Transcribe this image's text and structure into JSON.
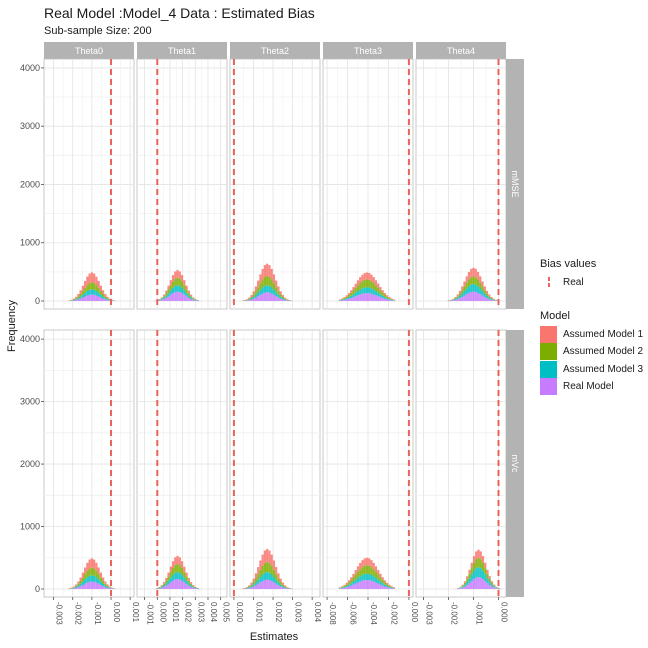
{
  "title": "Real Model :Model_4 Data : Estimated Bias",
  "subtitle": "Sub-sample Size: 200",
  "chart_data": {
    "type": "histogram",
    "xlabel": "Estimates",
    "ylabel": "Frequency",
    "ylim": [
      0,
      4050
    ],
    "yticks": [
      0,
      1000,
      2000,
      3000,
      4000
    ],
    "columns": [
      "Theta0",
      "Theta1",
      "Theta2",
      "Theta3",
      "Theta4"
    ],
    "rows": [
      "mMSE",
      "mVc"
    ],
    "column_xaxes": [
      {
        "xlim": [
          -0.0035,
          0.0012
        ],
        "ticks": [
          -0.003,
          -0.002,
          -0.001,
          0.0,
          0.001
        ],
        "tick_labels": [
          "-0.003",
          "-0.002",
          "-0.001",
          "0.000",
          "0.001"
        ]
      },
      {
        "xlim": [
          -0.0016,
          0.0055
        ],
        "ticks": [
          -0.001,
          0.0,
          0.001,
          0.002,
          0.003,
          0.004,
          0.005
        ],
        "tick_labels": [
          "-0.001",
          "0.000",
          "0.001",
          "0.002",
          "0.003",
          "0.004",
          "0.005"
        ]
      },
      {
        "xlim": [
          -0.0002,
          0.0044
        ],
        "ticks": [
          0.0,
          0.001,
          0.002,
          0.003,
          0.004
        ],
        "tick_labels": [
          "0.000",
          "0.001",
          "0.002",
          "0.003",
          "0.004"
        ]
      },
      {
        "xlim": [
          -0.0084,
          0.0004
        ],
        "ticks": [
          -0.008,
          -0.006,
          -0.004,
          -0.002,
          0.0
        ],
        "tick_labels": [
          "-0.008",
          "-0.006",
          "-0.004",
          "-0.002",
          "0.000"
        ]
      },
      {
        "xlim": [
          -0.0033,
          0.0003
        ],
        "ticks": [
          -0.003,
          -0.002,
          -0.001,
          0.0
        ],
        "tick_labels": [
          "-0.003",
          "-0.002",
          "-0.001",
          "0.000"
        ]
      }
    ],
    "real_bias": [
      0.0,
      0.0,
      0.0,
      0.0,
      0.0
    ],
    "histogram_centers": [
      [
        -0.001,
        -0.001
      ],
      [
        0.0016,
        0.0016
      ],
      [
        0.0017,
        0.0017
      ],
      [
        -0.0041,
        -0.0041
      ],
      [
        -0.001,
        -0.0008
      ]
    ],
    "histogram_sd": [
      [
        0.00042,
        0.00042
      ],
      [
        0.0006,
        0.0006
      ],
      [
        0.00042,
        0.00042
      ],
      [
        0.0011,
        0.0011
      ],
      [
        0.00035,
        0.0003
      ]
    ],
    "series": [
      {
        "name": "Real Model",
        "color": "#c77cff",
        "peaks": [
          [
            110,
            120
          ],
          [
            160,
            160
          ],
          [
            150,
            150
          ],
          [
            135,
            145
          ],
          [
            160,
            190
          ]
        ]
      },
      {
        "name": "Assumed Model 3",
        "color": "#00bfc4",
        "peaks": [
          [
            90,
            100
          ],
          [
            110,
            110
          ],
          [
            120,
            120
          ],
          [
            100,
            100
          ],
          [
            130,
            160
          ]
        ]
      },
      {
        "name": "Assumed Model 2",
        "color": "#7cae00",
        "peaks": [
          [
            120,
            120
          ],
          [
            130,
            130
          ],
          [
            160,
            160
          ],
          [
            135,
            135
          ],
          [
            130,
            150
          ]
        ]
      },
      {
        "name": "Assumed Model 1",
        "color": "#f8766d",
        "peaks": [
          [
            170,
            150
          ],
          [
            130,
            130
          ],
          [
            210,
            210
          ],
          [
            120,
            120
          ],
          [
            150,
            130
          ]
        ]
      }
    ],
    "legend": {
      "bias_title": "Bias values",
      "bias_label": "Real",
      "bias_color": "#e8645a",
      "model_title": "Model",
      "models": [
        {
          "label": "Assumed Model 1",
          "color": "#f8766d"
        },
        {
          "label": "Assumed Model 2",
          "color": "#7cae00"
        },
        {
          "label": "Assumed Model 3",
          "color": "#00bfc4"
        },
        {
          "label": "Real Model",
          "color": "#c77cff"
        }
      ],
      "position": "right"
    },
    "grid": true
  }
}
